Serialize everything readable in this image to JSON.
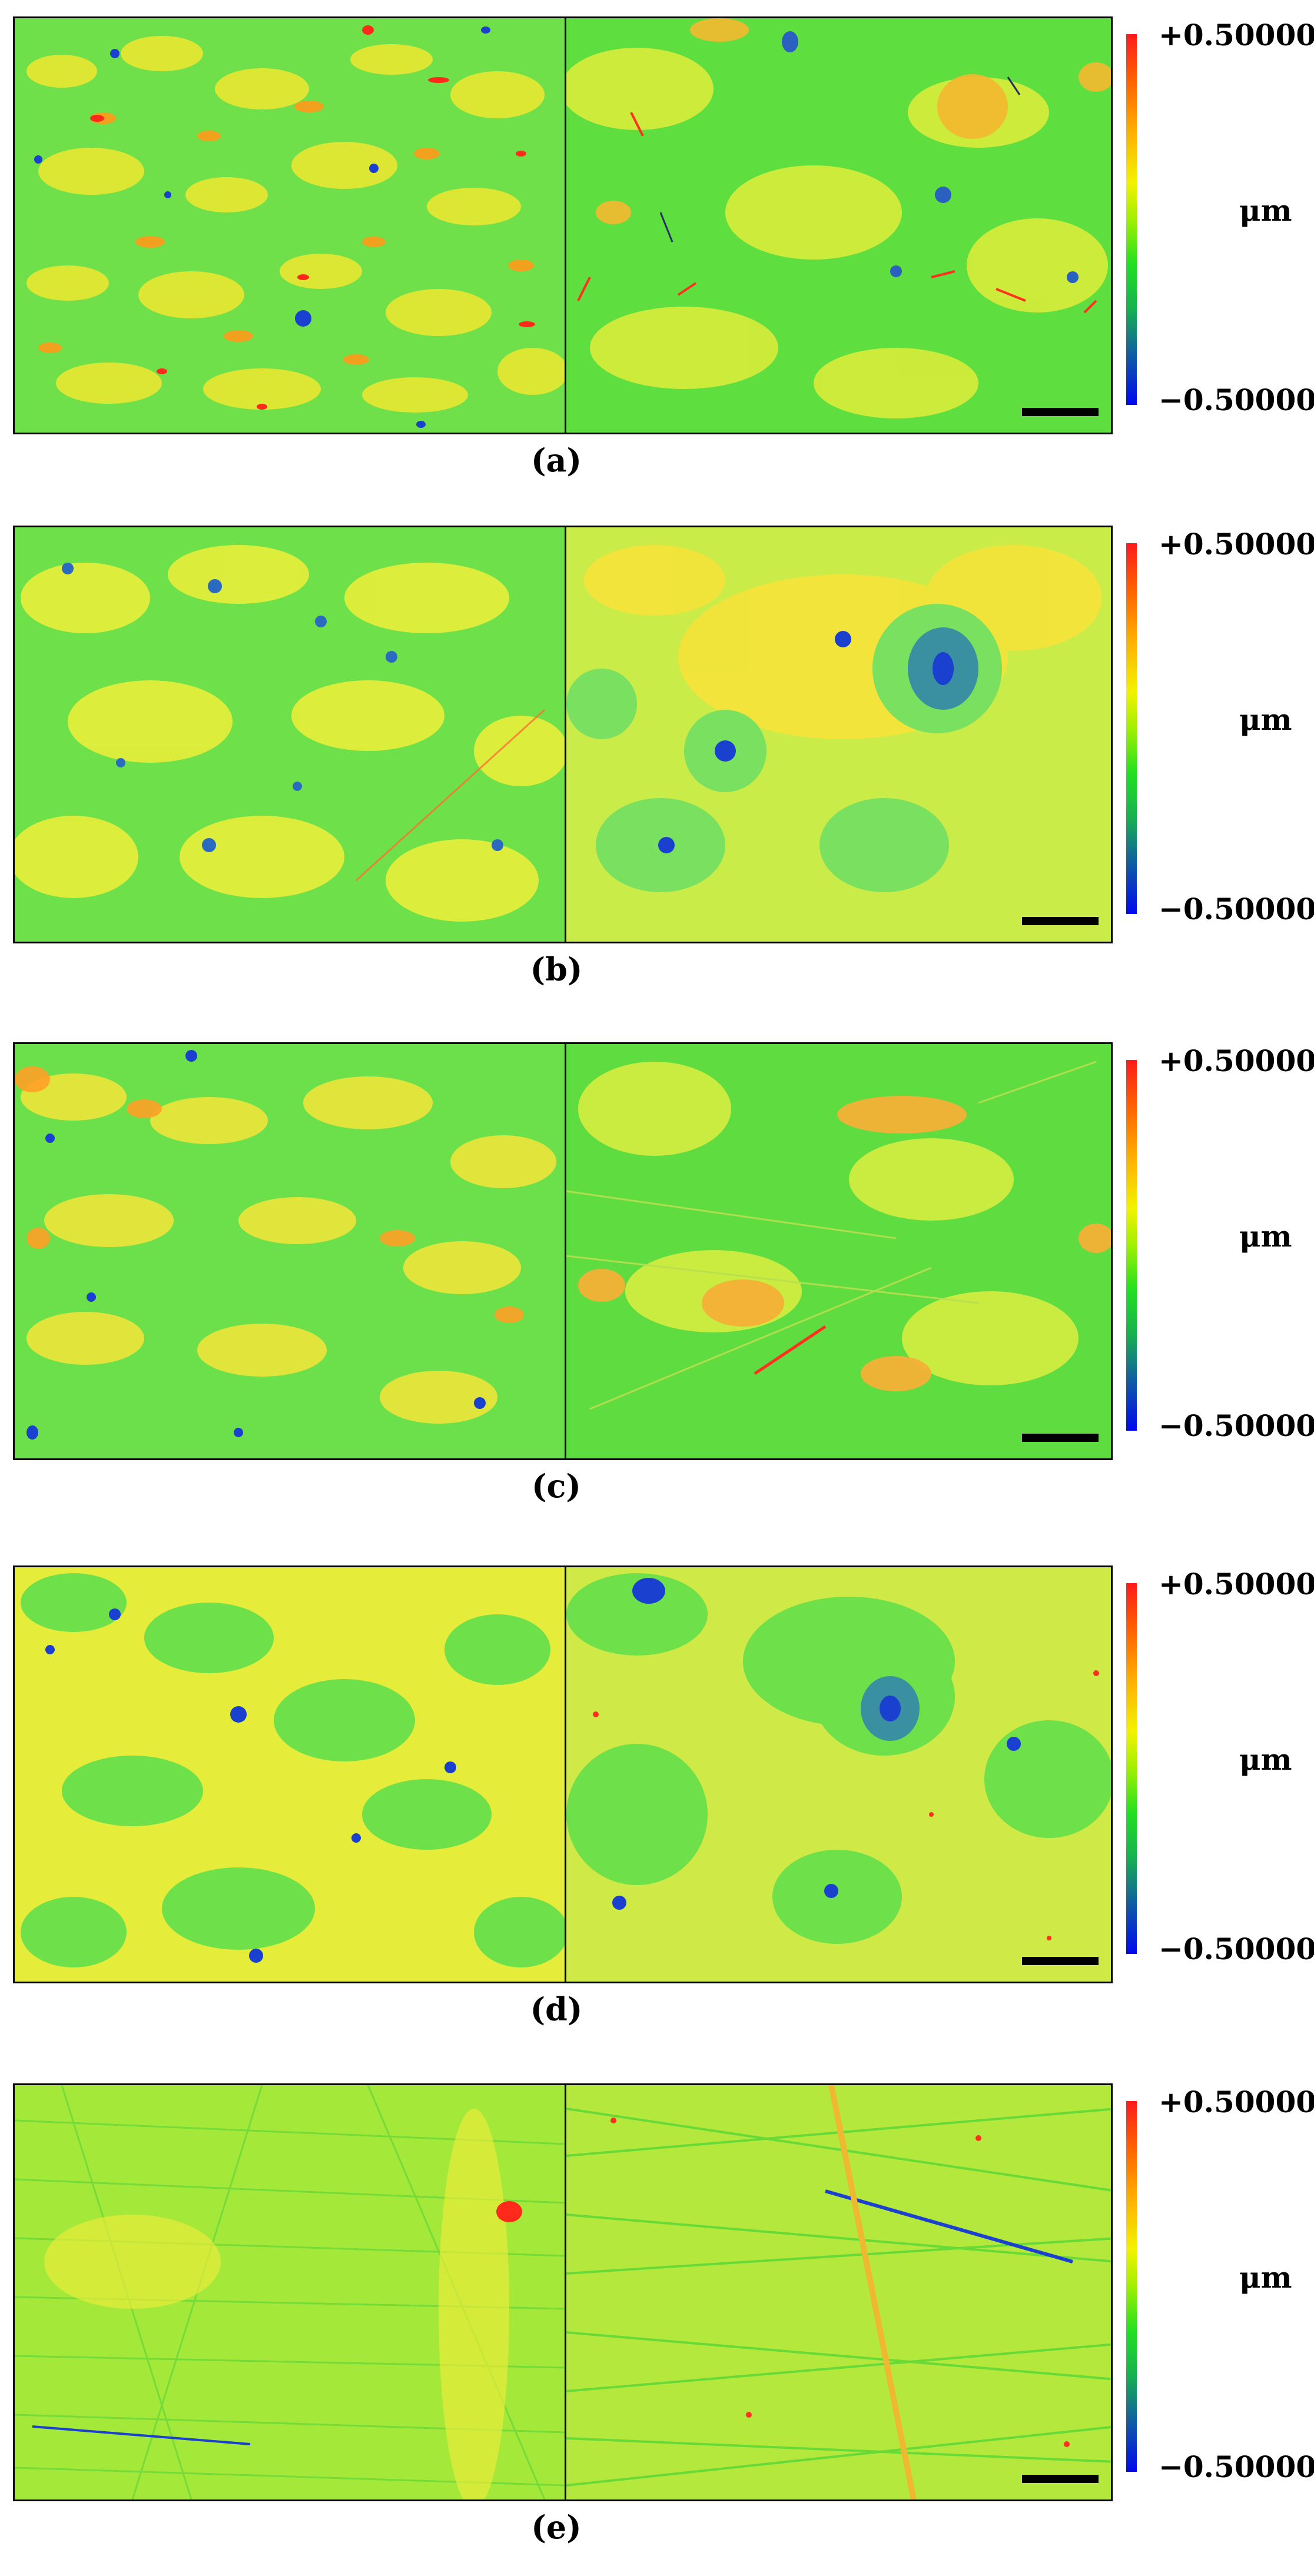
{
  "colorbar": {
    "max_label": "+0.50000",
    "min_label": "−0.50000",
    "unit": "μm",
    "colors": [
      "#ff1a1a",
      "#ff6a00",
      "#ffae00",
      "#f2f200",
      "#a0f000",
      "#22e022",
      "#18b050",
      "#1060a0",
      "#0008f0"
    ]
  },
  "panels": [
    {
      "caption": "(a)"
    },
    {
      "caption": "(b)"
    },
    {
      "caption": "(c)"
    },
    {
      "caption": "(d)"
    },
    {
      "caption": "(e)"
    }
  ]
}
